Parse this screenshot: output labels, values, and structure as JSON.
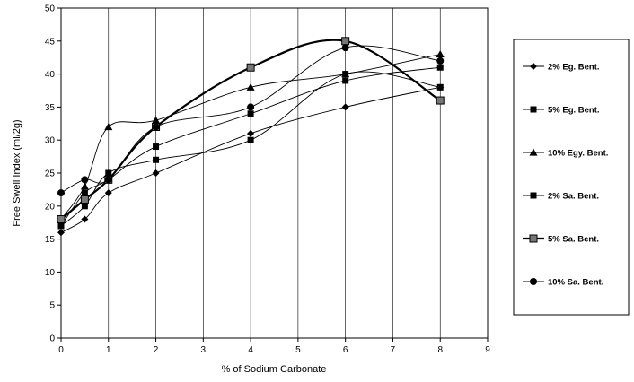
{
  "chart_data": {
    "type": "line",
    "title": "",
    "xlabel": "% of Sodium Carbonate",
    "ylabel": "Free Swell Index (ml/2g)",
    "xlim": [
      0,
      9
    ],
    "ylim": [
      0,
      50
    ],
    "xticks": [
      "0",
      "1",
      "2",
      "3",
      "4",
      "5",
      "6",
      "7",
      "8",
      "9"
    ],
    "yticks": [
      "0",
      "5",
      "10",
      "15",
      "20",
      "25",
      "30",
      "35",
      "40",
      "45",
      "50"
    ],
    "grid": "vertical",
    "legend_position": "right",
    "series": [
      {
        "name": "2% Eg. Bent.",
        "marker": "diamond",
        "x": [
          0,
          0.5,
          1,
          2,
          4,
          6,
          8
        ],
        "y": [
          16,
          18,
          22,
          25,
          31,
          35,
          38
        ]
      },
      {
        "name": "5% Eg. Bent.",
        "marker": "square",
        "x": [
          0,
          0.5,
          1,
          2,
          4,
          6,
          8
        ],
        "y": [
          17,
          20,
          25,
          27,
          30,
          40,
          38
        ]
      },
      {
        "name": "10% Egy. Bent.",
        "marker": "triangle",
        "x": [
          0,
          0.5,
          1,
          2,
          4,
          6,
          8
        ],
        "y": [
          18,
          23,
          32,
          33,
          38,
          40,
          43
        ]
      },
      {
        "name": "2% Sa. Bent.",
        "marker": "square",
        "x": [
          0,
          0.5,
          1,
          2,
          4,
          6,
          8
        ],
        "y": [
          17,
          22,
          24,
          29,
          34,
          39,
          41
        ]
      },
      {
        "name": "5% Sa. Bent.",
        "marker": "square-gray",
        "thick": true,
        "x": [
          0,
          0.5,
          1,
          2,
          4,
          6,
          8
        ],
        "y": [
          18,
          21,
          24,
          32,
          41,
          45,
          36
        ]
      },
      {
        "name": "10% Sa. Bent.",
        "marker": "circle",
        "x": [
          0,
          0.5,
          1,
          2,
          4,
          6,
          8
        ],
        "y": [
          22,
          24,
          24,
          32,
          35,
          44,
          42
        ]
      }
    ]
  }
}
